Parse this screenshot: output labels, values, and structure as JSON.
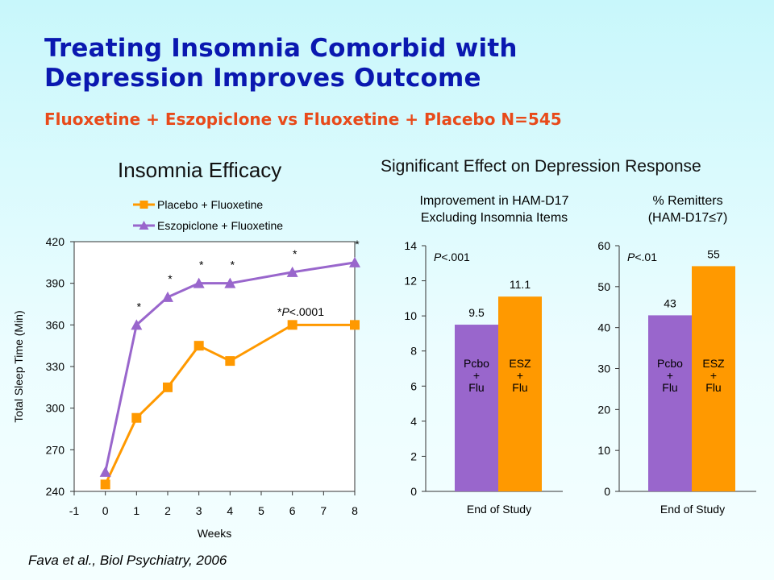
{
  "slide": {
    "title_lines": [
      "Treating Insomnia Comorbid with",
      "Depression Improves Outcome"
    ],
    "subtitle": "Fluoxetine + Eszopiclone vs Fluoxetine + Placebo N=545",
    "left_title": "Insomnia Efficacy",
    "right_title": "Significant Effect on Depression Response",
    "citation_prefix": "Fava et al., ",
    "citation_journal": "Biol Psychiatry, 2006"
  },
  "colors": {
    "placebo": "#ff9900",
    "esz": "#9966cc",
    "title": "#0a18b0",
    "subtitle": "#e84a1a"
  },
  "chart_data": [
    {
      "type": "line",
      "title": "Insomnia Efficacy",
      "xlabel": "Weeks",
      "ylabel": "Total Sleep Time (Min)",
      "xlim": [
        -1,
        8
      ],
      "ylim": [
        240,
        420
      ],
      "x_ticks": [
        -1,
        0,
        1,
        2,
        3,
        4,
        5,
        6,
        7,
        8
      ],
      "y_ticks": [
        240,
        270,
        300,
        330,
        360,
        390,
        420
      ],
      "legend": "top-left outside",
      "series": [
        {
          "name": "Placebo + Fluoxetine",
          "color": "#ff9900",
          "marker": "square",
          "x": [
            0,
            1,
            2,
            3,
            4,
            6,
            8
          ],
          "y": [
            245,
            293,
            315,
            345,
            334,
            360,
            360
          ]
        },
        {
          "name": "Eszopiclone + Fluoxetine",
          "color": "#9966cc",
          "marker": "triangle",
          "x": [
            0,
            1,
            2,
            3,
            4,
            6,
            8
          ],
          "y": [
            254,
            360,
            380,
            390,
            390,
            398,
            405
          ]
        }
      ],
      "significance_marker": "*",
      "significance_weeks": [
        1,
        2,
        3,
        4,
        6,
        8
      ],
      "annotation": {
        "prefix": "*",
        "p": "P",
        "text": "<.0001"
      }
    },
    {
      "type": "bar",
      "title_lines": [
        "Improvement in HAM-D17",
        "Excluding Insomnia Items"
      ],
      "xlabel": "End of Study",
      "ylim": [
        0,
        14
      ],
      "y_ticks": [
        0,
        2,
        4,
        6,
        8,
        10,
        12,
        14
      ],
      "p_label": {
        "p": "P",
        "text": "<.001"
      },
      "bars": [
        {
          "label_lines": [
            "Pcbo",
            "+",
            "Flu"
          ],
          "value": 9.5,
          "value_label": "9.5",
          "color": "#9966cc"
        },
        {
          "label_lines": [
            "ESZ",
            "+",
            "Flu"
          ],
          "value": 11.1,
          "value_label": "11.1",
          "color": "#ff9900"
        }
      ]
    },
    {
      "type": "bar",
      "title_lines": [
        "% Remitters",
        "(HAM-D17≤7)"
      ],
      "xlabel": "End of Study",
      "ylim": [
        0,
        60
      ],
      "y_ticks": [
        0,
        10,
        20,
        30,
        40,
        50,
        60
      ],
      "p_label": {
        "p": "P",
        "text": "<.01"
      },
      "bars": [
        {
          "label_lines": [
            "Pcbo",
            "+",
            "Flu"
          ],
          "value": 43,
          "value_label": "43",
          "color": "#9966cc"
        },
        {
          "label_lines": [
            "ESZ",
            "+",
            "Flu"
          ],
          "value": 55,
          "value_label": "55",
          "color": "#ff9900"
        }
      ]
    }
  ]
}
